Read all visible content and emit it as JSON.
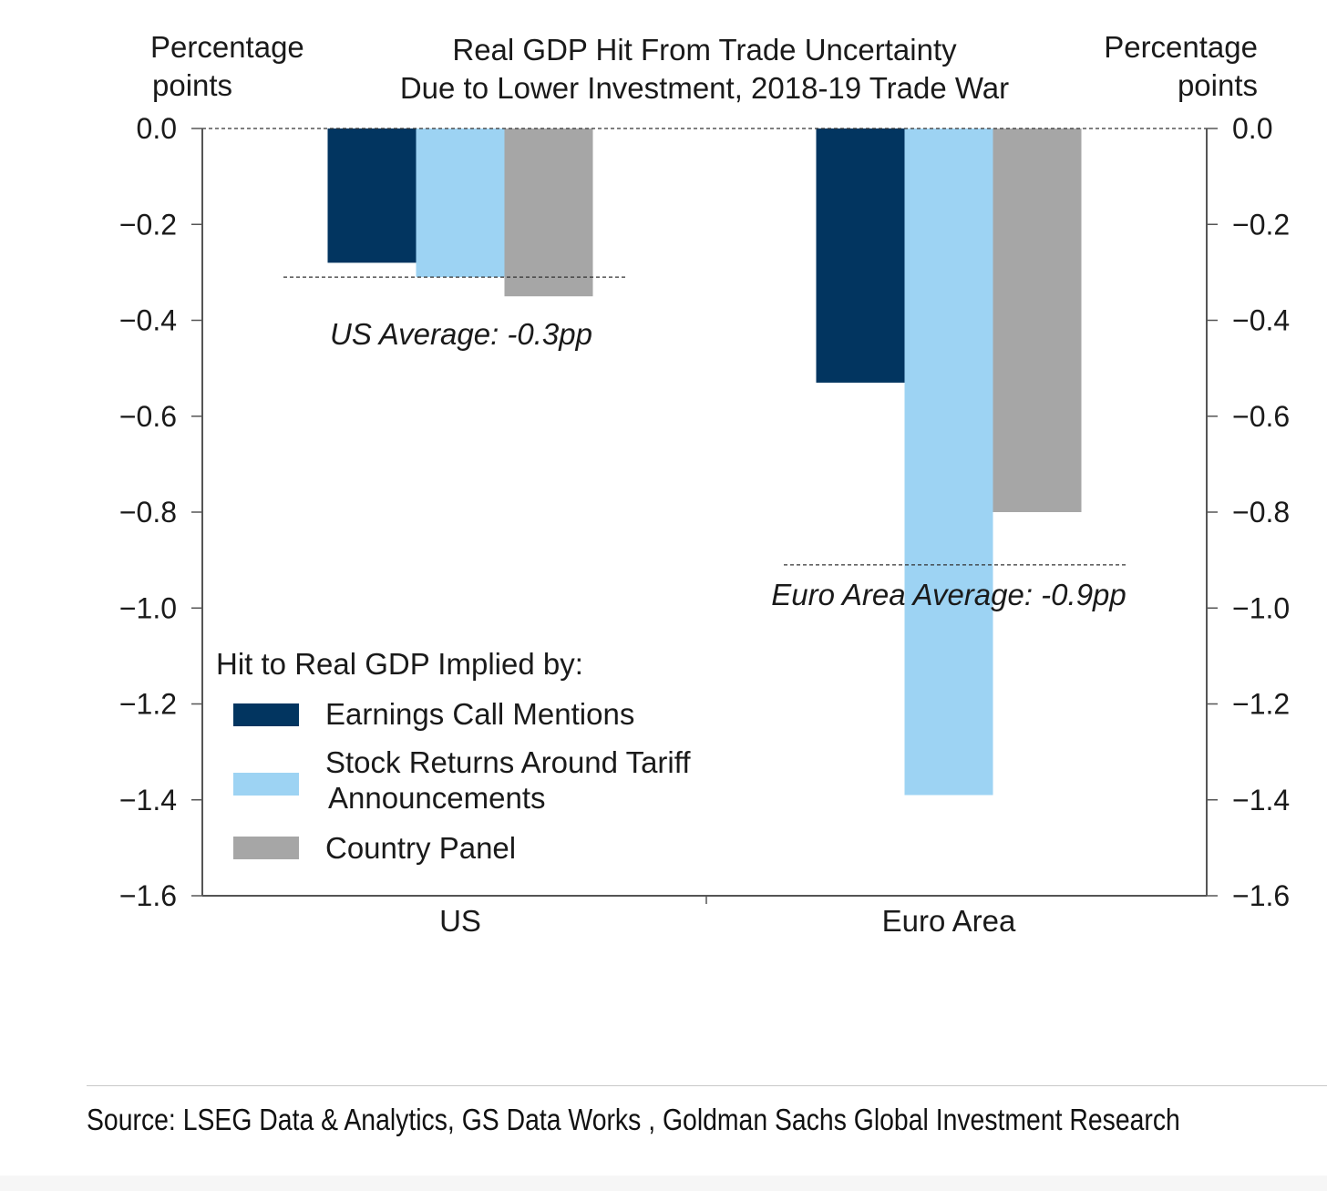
{
  "chart_data": {
    "type": "bar",
    "title": [
      "Real GDP Hit From Trade Uncertainty",
      "Due to Lower Investment, 2018-19 Trade War"
    ],
    "ylabel_left": [
      "Percentage",
      "points"
    ],
    "ylabel_right": [
      "Percentage",
      "points"
    ],
    "ylim": [
      -1.6,
      0.0
    ],
    "yticks": [
      0.0,
      -0.2,
      -0.4,
      -0.6,
      -0.8,
      -1.0,
      -1.2,
      -1.4,
      -1.6
    ],
    "ytick_labels": [
      "0.0",
      "−0.2",
      "−0.4",
      "−0.6",
      "−0.8",
      "−1.0",
      "−1.2",
      "−1.4",
      "−1.6"
    ],
    "categories": [
      "US",
      "Euro Area"
    ],
    "legend_title": "Hit to Real GDP Implied by:",
    "legend_position": "bottom-left",
    "series": [
      {
        "name": "Earnings Call Mentions",
        "values": [
          -0.28,
          -0.53
        ],
        "color": "#023560"
      },
      {
        "name": "Stock Returns Around Tariff Announcements",
        "name_lines": [
          "Stock Returns Around Tariff",
          "Announcements"
        ],
        "values": [
          -0.31,
          -1.39
        ],
        "color": "#9dd3f3"
      },
      {
        "name": "Country Panel",
        "values": [
          -0.35,
          -0.8
        ],
        "color": "#a6a6a6"
      }
    ],
    "reference_lines": [
      {
        "label": "US Average: -0.3pp",
        "value": -0.31,
        "category": "US"
      },
      {
        "label": "Euro Area Average: -0.9pp",
        "value": -0.91,
        "category": "Euro Area"
      }
    ],
    "zero_line": "dashed",
    "grid": false
  },
  "source": "Source: LSEG Data & Analytics, GS Data Works , Goldman Sachs Global Investment Research"
}
